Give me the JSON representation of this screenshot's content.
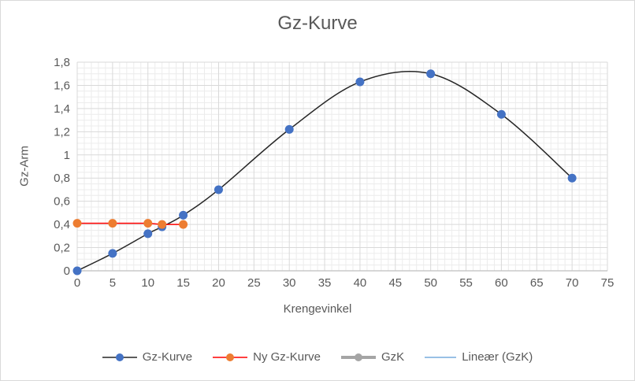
{
  "chart_data": {
    "type": "line",
    "title": "Gz-Kurve",
    "xlabel": "Krengevinkel",
    "ylabel": "Gz-Arm",
    "xlim": [
      0,
      75
    ],
    "ylim": [
      0,
      1.8
    ],
    "x_major_step": 5,
    "x_minor_step": 1,
    "y_major_step": 0.2,
    "y_minor_step": 0.05,
    "x_tick_labels": [
      "0",
      "5",
      "10",
      "15",
      "20",
      "25",
      "30",
      "35",
      "40",
      "45",
      "50",
      "55",
      "60",
      "65",
      "70",
      "75"
    ],
    "y_tick_labels": [
      "0",
      "0,2",
      "0,4",
      "0,6",
      "0,8",
      "1",
      "1,2",
      "1,4",
      "1,6",
      "1,8"
    ],
    "grid": "major+minor",
    "legend_position": "bottom",
    "series": [
      {
        "name": "Gz-Kurve",
        "x": [
          0,
          5,
          10,
          12,
          15,
          20,
          30,
          40,
          50,
          60,
          70
        ],
        "y": [
          0,
          0.15,
          0.32,
          0.38,
          0.48,
          0.7,
          1.22,
          1.63,
          1.7,
          1.35,
          0.8
        ],
        "line_color": "#262626",
        "marker_color": "#4472C4",
        "line_width": 1.5,
        "marker": "circle",
        "smooth": true
      },
      {
        "name": "Ny Gz-Kurve",
        "x": [
          0,
          5,
          10,
          12,
          15
        ],
        "y": [
          0.41,
          0.41,
          0.41,
          0.4,
          0.4
        ],
        "line_color": "#FF0000",
        "marker_color": "#ED7D31",
        "line_width": 1.5,
        "marker": "circle",
        "smooth": false
      },
      {
        "name": "GzK",
        "x": [],
        "y": [],
        "line_color": "#A5A5A5",
        "marker_color": "#A5A5A5",
        "line_width": 4,
        "marker": "circle",
        "smooth": false
      },
      {
        "name": "Lineær (GzK)",
        "x": [],
        "y": [],
        "line_color": "#5B9BD5",
        "marker_color": null,
        "line_width": 1.25,
        "marker": "none",
        "smooth": false
      }
    ],
    "colors": {
      "text": "#595959",
      "major_grid": "#D9D9D9",
      "minor_grid": "#ECECEC",
      "axis_line": "#BFBFBF"
    }
  }
}
